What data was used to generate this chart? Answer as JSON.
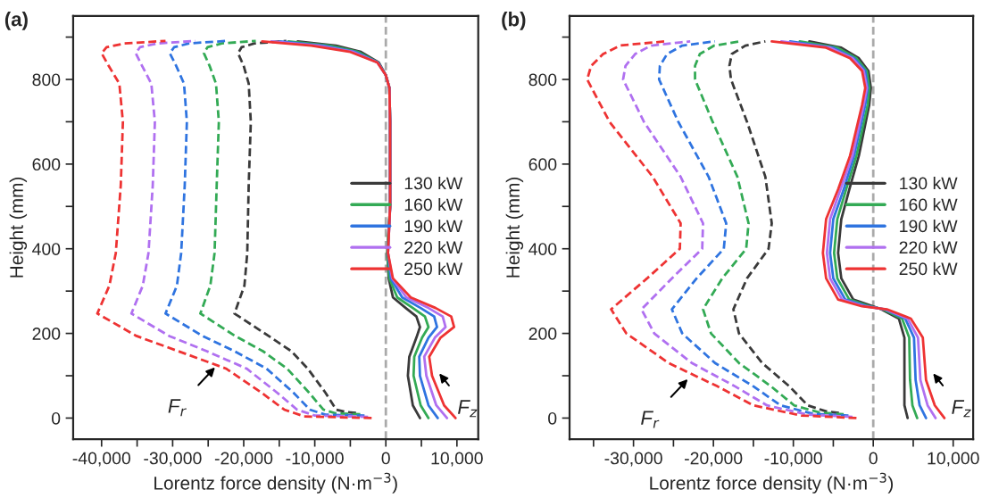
{
  "chart_data": [
    {
      "type": "line",
      "title": "(a)",
      "xlabel": "Lorentz force density (N·m$^{−3}$)",
      "ylabel": "Height (mm)",
      "xlim": [
        -44000,
        13000
      ],
      "ylim": [
        -50,
        950
      ],
      "xticks": [
        {
          "value": -40000,
          "label": "-40,000"
        },
        {
          "value": -35000,
          "label": null
        },
        {
          "value": -30000,
          "label": "-30,000"
        },
        {
          "value": -25000,
          "label": null
        },
        {
          "value": -20000,
          "label": "-20,000"
        },
        {
          "value": -15000,
          "label": null
        },
        {
          "value": -10000,
          "label": "-10,000"
        },
        {
          "value": -5000,
          "label": null
        },
        0,
        {
          "value": 5000,
          "label": null
        },
        {
          "value": 10000,
          "label": "10,000"
        }
      ],
      "yticks": [
        0,
        {
          "value": 100,
          "label": null
        },
        200,
        {
          "value": 300,
          "label": null
        },
        400,
        {
          "value": 500,
          "label": null
        },
        600,
        {
          "value": 700,
          "label": null
        },
        800,
        {
          "value": 900,
          "label": null
        }
      ],
      "legend": "right",
      "grid": false,
      "ref_lines": [
        {
          "axis": "x",
          "value": 0,
          "color": "#aaaaaa",
          "line_style": "dashed"
        }
      ],
      "annotations": [
        {
          "text": "F$_{r}$",
          "x": -23800,
          "y": 124
        },
        {
          "text": "F$_{z}$",
          "x": 7300,
          "y": 110
        }
      ],
      "series": [
        {
          "line_style": "dashed",
          "color": "#3a3a3a",
          "x": [
            -4200,
            -5500,
            -7000,
            -8500,
            -11000,
            -13300,
            -16500,
            -21300,
            -19900,
            -19500,
            -19300,
            -19000,
            -19300,
            -20000,
            -20800,
            -20300,
            -18500,
            -14000
          ],
          "values": [
            12,
            14,
            20,
            60,
            117,
            158,
            194,
            247,
            313,
            390,
            550,
            700,
            790,
            832,
            862,
            876,
            885,
            891
          ]
        },
        {
          "line_style": "dashed",
          "color": "#33aa55",
          "x": [
            -3600,
            -7000,
            -8800,
            -10800,
            -13900,
            -17300,
            -21200,
            -26100,
            -24700,
            -24100,
            -23800,
            -23500,
            -23900,
            -24800,
            -25600,
            -25100,
            -23100,
            -18300
          ],
          "values": [
            9,
            11,
            20,
            60,
            117,
            158,
            194,
            247,
            313,
            390,
            550,
            700,
            790,
            832,
            862,
            876,
            885,
            891
          ]
        },
        {
          "line_style": "dashed",
          "color": "#2f74e0",
          "x": [
            -3000,
            -8500,
            -10700,
            -13000,
            -16800,
            -21300,
            -25800,
            -31000,
            -29400,
            -28800,
            -28300,
            -28000,
            -28400,
            -29500,
            -30400,
            -29800,
            -27700,
            -22500
          ],
          "values": [
            6,
            8,
            20,
            60,
            117,
            158,
            194,
            247,
            313,
            390,
            550,
            700,
            790,
            832,
            862,
            876,
            885,
            891
          ]
        },
        {
          "line_style": "dashed",
          "color": "#b070f0",
          "x": [
            -2500,
            -10000,
            -12500,
            -15300,
            -19600,
            -25200,
            -30500,
            -35800,
            -34200,
            -33400,
            -32800,
            -32500,
            -33000,
            -34300,
            -35200,
            -34600,
            -32200,
            -26800
          ],
          "values": [
            3,
            6,
            20,
            60,
            117,
            158,
            194,
            247,
            313,
            390,
            550,
            700,
            790,
            832,
            862,
            876,
            885,
            891
          ]
        },
        {
          "line_style": "dashed",
          "color": "#ee3333",
          "x": [
            -2000,
            -11500,
            -14300,
            -17500,
            -22500,
            -29200,
            -35100,
            -40600,
            -38900,
            -38000,
            -37300,
            -37000,
            -37500,
            -39000,
            -40000,
            -39300,
            -36800,
            -31000
          ],
          "values": [
            0,
            4,
            20,
            60,
            117,
            158,
            194,
            247,
            313,
            390,
            550,
            700,
            790,
            832,
            862,
            876,
            885,
            891
          ]
        },
        {
          "line_style": "solid",
          "name": "130 kW",
          "color": "#3a3a3a",
          "x": [
            4800,
            3800,
            3100,
            3300,
            4300,
            4800,
            4300,
            2800,
            1000,
            400,
            200,
            600,
            600,
            500,
            0,
            -1000,
            -3500,
            -7000,
            -12400
          ],
          "values": [
            0,
            30,
            100,
            145,
            190,
            215,
            240,
            260,
            285,
            330,
            390,
            500,
            700,
            780,
            810,
            840,
            865,
            880,
            890
          ]
        },
        {
          "line_style": "solid",
          "name": "160 kW",
          "color": "#33aa55",
          "x": [
            6000,
            4900,
            3900,
            4000,
            5100,
            6000,
            5500,
            3800,
            1600,
            500,
            200,
            600,
            600,
            500,
            0,
            -1100,
            -3900,
            -7900,
            -13700
          ],
          "values": [
            0,
            30,
            100,
            145,
            190,
            215,
            240,
            260,
            285,
            330,
            390,
            500,
            700,
            780,
            810,
            840,
            865,
            880,
            890
          ]
        },
        {
          "line_style": "solid",
          "name": "190 kW",
          "color": "#2f74e0",
          "x": [
            7300,
            6000,
            4800,
            4700,
            6000,
            7200,
            6800,
            4900,
            2300,
            700,
            300,
            600,
            600,
            500,
            0,
            -1100,
            -4300,
            -8800,
            -14900
          ],
          "values": [
            0,
            30,
            100,
            145,
            190,
            215,
            240,
            260,
            285,
            330,
            390,
            500,
            700,
            780,
            810,
            840,
            865,
            880,
            890
          ]
        },
        {
          "line_style": "solid",
          "name": "220 kW",
          "color": "#b070f0",
          "x": [
            8600,
            7100,
            5700,
            5400,
            6900,
            8400,
            8000,
            6000,
            2900,
            900,
            300,
            600,
            600,
            500,
            0,
            -1200,
            -4600,
            -9600,
            -16100
          ],
          "values": [
            0,
            30,
            100,
            145,
            190,
            215,
            240,
            260,
            285,
            330,
            390,
            500,
            700,
            780,
            810,
            840,
            865,
            880,
            890
          ]
        },
        {
          "line_style": "solid",
          "name": "250 kW",
          "color": "#ee3333",
          "x": [
            9800,
            8200,
            6500,
            6100,
            7700,
            9600,
            9200,
            7000,
            3500,
            1000,
            300,
            600,
            600,
            500,
            0,
            -1200,
            -5000,
            -10500,
            -17400
          ],
          "values": [
            0,
            30,
            100,
            145,
            190,
            215,
            240,
            260,
            285,
            330,
            390,
            500,
            700,
            780,
            810,
            840,
            865,
            880,
            890
          ]
        }
      ]
    },
    {
      "type": "line",
      "title": "(b)",
      "xlabel": "Lorentz force density (N·m$^{−3}$)",
      "ylabel": "Height (mm)",
      "xlim": [
        -38000,
        12500
      ],
      "ylim": [
        -50,
        950
      ],
      "xticks": [
        {
          "value": -35000,
          "label": null
        },
        {
          "value": -30000,
          "label": "-30,000"
        },
        {
          "value": -25000,
          "label": null
        },
        {
          "value": -20000,
          "label": "-20,000"
        },
        {
          "value": -15000,
          "label": null
        },
        {
          "value": -10000,
          "label": "-10,000"
        },
        {
          "value": -5000,
          "label": null
        },
        0,
        {
          "value": 5000,
          "label": null
        },
        {
          "value": 10000,
          "label": "10,000"
        }
      ],
      "yticks": [
        0,
        {
          "value": 100,
          "label": null
        },
        200,
        {
          "value": 300,
          "label": null
        },
        400,
        {
          "value": 500,
          "label": null
        },
        600,
        {
          "value": 700,
          "label": null
        },
        800,
        {
          "value": 900,
          "label": null
        }
      ],
      "legend": "right",
      "grid": false,
      "ref_lines": [
        {
          "axis": "x",
          "value": 0,
          "color": "#aaaaaa",
          "line_style": "dashed"
        }
      ],
      "annotations": [
        {
          "text": "F$_{r}$",
          "x": -23000,
          "y": 96
        },
        {
          "text": "F$_{z}$",
          "x": 7300,
          "y": 110
        }
      ],
      "series": [
        {
          "line_style": "dashed",
          "color": "#3a3a3a",
          "x": [
            -4300,
            -5900,
            -8200,
            -10500,
            -13900,
            -16800,
            -17500,
            -15800,
            -13100,
            -12700,
            -13500,
            -15800,
            -17800,
            -18000,
            -17700,
            -16000,
            -13500
          ],
          "values": [
            12,
            16,
            30,
            75,
            130,
            200,
            257,
            330,
            400,
            460,
            570,
            700,
            800,
            832,
            860,
            880,
            890
          ]
        },
        {
          "line_style": "dashed",
          "color": "#33aa55",
          "x": [
            -3700,
            -6700,
            -9900,
            -12800,
            -16800,
            -20300,
            -21300,
            -18900,
            -15900,
            -15600,
            -17000,
            -20100,
            -22300,
            -22300,
            -21700,
            -19900,
            -16600
          ],
          "values": [
            9,
            13,
            30,
            75,
            130,
            200,
            257,
            330,
            400,
            460,
            570,
            700,
            800,
            832,
            860,
            880,
            890
          ]
        },
        {
          "line_style": "dashed",
          "color": "#2f74e0",
          "x": [
            -3100,
            -7500,
            -11600,
            -15000,
            -19800,
            -23900,
            -25200,
            -22100,
            -18700,
            -18400,
            -20600,
            -24400,
            -26800,
            -26700,
            -25800,
            -23900,
            -19800
          ],
          "values": [
            6,
            10,
            30,
            75,
            130,
            200,
            257,
            330,
            400,
            460,
            570,
            700,
            800,
            832,
            860,
            880,
            890
          ]
        },
        {
          "line_style": "dashed",
          "color": "#b070f0",
          "x": [
            -2600,
            -8200,
            -13300,
            -17300,
            -22700,
            -27400,
            -29000,
            -25200,
            -21400,
            -21300,
            -24100,
            -28700,
            -31300,
            -31000,
            -29800,
            -27800,
            -22900
          ],
          "values": [
            3,
            8,
            30,
            75,
            130,
            200,
            257,
            330,
            400,
            460,
            570,
            700,
            800,
            832,
            860,
            880,
            890
          ]
        },
        {
          "line_style": "dashed",
          "color": "#ee3333",
          "x": [
            -2100,
            -9000,
            -15000,
            -19500,
            -25600,
            -30900,
            -32800,
            -28300,
            -24200,
            -24100,
            -27600,
            -33000,
            -35800,
            -35300,
            -33800,
            -31700,
            -26000
          ],
          "values": [
            0,
            6,
            30,
            75,
            130,
            200,
            257,
            330,
            400,
            460,
            570,
            700,
            800,
            832,
            860,
            880,
            890
          ]
        },
        {
          "line_style": "solid",
          "name": "130 kW",
          "color": "#3a3a3a",
          "x": [
            4300,
            3900,
            3900,
            3900,
            3200,
            1000,
            0,
            -2500,
            -4000,
            -4400,
            -4000,
            -3000,
            -1800,
            -500,
            -300,
            -600,
            -1800,
            -4000,
            -8000
          ],
          "values": [
            0,
            30,
            90,
            190,
            235,
            257,
            264,
            280,
            330,
            390,
            470,
            540,
            620,
            740,
            780,
            820,
            850,
            875,
            890
          ]
        },
        {
          "line_style": "solid",
          "name": "160 kW",
          "color": "#33aa55",
          "x": [
            5500,
            4900,
            4600,
            4500,
            3600,
            1200,
            -400,
            -3000,
            -4500,
            -4900,
            -4500,
            -3400,
            -2100,
            -700,
            -500,
            -800,
            -2100,
            -4500,
            -9200
          ],
          "values": [
            0,
            30,
            90,
            190,
            235,
            257,
            264,
            280,
            330,
            390,
            470,
            540,
            620,
            740,
            780,
            820,
            850,
            875,
            890
          ]
        },
        {
          "line_style": "solid",
          "name": "190 kW",
          "color": "#2f74e0",
          "x": [
            6600,
            5800,
            5300,
            5100,
            4000,
            1400,
            -700,
            -3500,
            -5000,
            -5400,
            -5000,
            -3700,
            -2400,
            -1000,
            -700,
            -1000,
            -2400,
            -5000,
            -10400
          ],
          "values": [
            0,
            30,
            90,
            190,
            235,
            257,
            264,
            280,
            330,
            390,
            470,
            540,
            620,
            740,
            780,
            820,
            850,
            875,
            890
          ]
        },
        {
          "line_style": "solid",
          "name": "220 kW",
          "color": "#b070f0",
          "x": [
            7800,
            6800,
            5900,
            5600,
            4300,
            1500,
            -1100,
            -3900,
            -5400,
            -5800,
            -5400,
            -4100,
            -2600,
            -1200,
            -800,
            -1200,
            -2600,
            -5400,
            -11500
          ],
          "values": [
            0,
            30,
            90,
            190,
            235,
            257,
            264,
            280,
            330,
            390,
            470,
            540,
            620,
            740,
            780,
            820,
            850,
            875,
            890
          ]
        },
        {
          "line_style": "solid",
          "name": "250 kW",
          "color": "#ee3333",
          "x": [
            8900,
            7700,
            6600,
            6200,
            4700,
            1700,
            -1400,
            -4400,
            -5900,
            -6300,
            -5900,
            -4400,
            -2900,
            -1400,
            -1000,
            -1400,
            -2900,
            -5900,
            -12700
          ],
          "values": [
            0,
            30,
            90,
            190,
            235,
            257,
            264,
            280,
            330,
            390,
            470,
            540,
            620,
            740,
            780,
            820,
            850,
            875,
            890
          ]
        }
      ]
    }
  ]
}
